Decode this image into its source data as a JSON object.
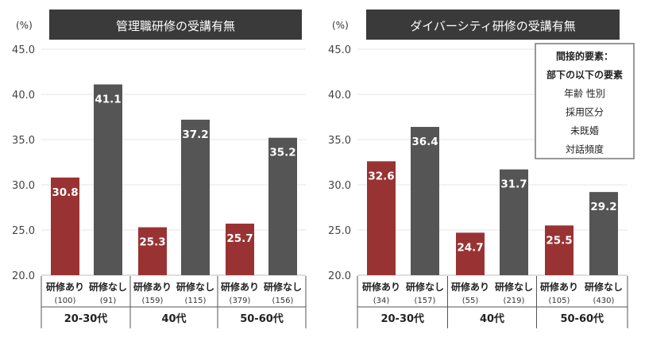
{
  "chart_data": [
    {
      "type": "bar",
      "title": "管理職研修の受講有無",
      "ylabel": "(%)",
      "ylim": [
        20,
        45
      ],
      "yticks": [
        "20.0",
        "25.0",
        "30.0",
        "35.0",
        "40.0",
        "45.0"
      ],
      "grid": true,
      "groups": [
        {
          "label": "20-30代",
          "bars": [
            {
              "label": "研修あり",
              "n": "(100)",
              "value": 30.8,
              "value_label": "30.8",
              "color": "#993333"
            },
            {
              "label": "研修なし",
              "n": "(91)",
              "value": 41.1,
              "value_label": "41.1",
              "color": "#555555"
            }
          ]
        },
        {
          "label": "40代",
          "bars": [
            {
              "label": "研修あり",
              "n": "(159)",
              "value": 25.3,
              "value_label": "25.3",
              "color": "#993333"
            },
            {
              "label": "研修なし",
              "n": "(115)",
              "value": 37.2,
              "value_label": "37.2",
              "color": "#555555"
            }
          ]
        },
        {
          "label": "50-60代",
          "bars": [
            {
              "label": "研修あり",
              "n": "(379)",
              "value": 25.7,
              "value_label": "25.7",
              "color": "#993333"
            },
            {
              "label": "研修なし",
              "n": "(156)",
              "value": 35.2,
              "value_label": "35.2",
              "color": "#555555"
            }
          ]
        }
      ]
    },
    {
      "type": "bar",
      "title": "ダイバーシティ研修の受講有無",
      "ylabel": "(%)",
      "ylim": [
        20,
        45
      ],
      "yticks": [
        "20.0",
        "25.0",
        "30.0",
        "35.0",
        "40.0",
        "45.0"
      ],
      "grid": true,
      "annotation": {
        "lines": [
          "間接的要素：",
          "部下の以下の要素",
          "年齢  性別",
          "採用区分",
          "未既婚",
          "対話頻度"
        ],
        "bold_lines": 2
      },
      "groups": [
        {
          "label": "20-30代",
          "bars": [
            {
              "label": "研修あり",
              "n": "(34)",
              "value": 32.6,
              "value_label": "32.6",
              "color": "#993333"
            },
            {
              "label": "研修なし",
              "n": "(157)",
              "value": 36.4,
              "value_label": "36.4",
              "color": "#555555"
            }
          ]
        },
        {
          "label": "40代",
          "bars": [
            {
              "label": "研修あり",
              "n": "(55)",
              "value": 24.7,
              "value_label": "24.7",
              "color": "#993333"
            },
            {
              "label": "研修なし",
              "n": "(219)",
              "value": 31.7,
              "value_label": "31.7",
              "color": "#555555"
            }
          ]
        },
        {
          "label": "50-60代",
          "bars": [
            {
              "label": "研修あり",
              "n": "(105)",
              "value": 25.5,
              "value_label": "25.5",
              "color": "#993333"
            },
            {
              "label": "研修なし",
              "n": "(430)",
              "value": 29.2,
              "value_label": "29.2",
              "color": "#555555"
            }
          ]
        }
      ]
    }
  ]
}
